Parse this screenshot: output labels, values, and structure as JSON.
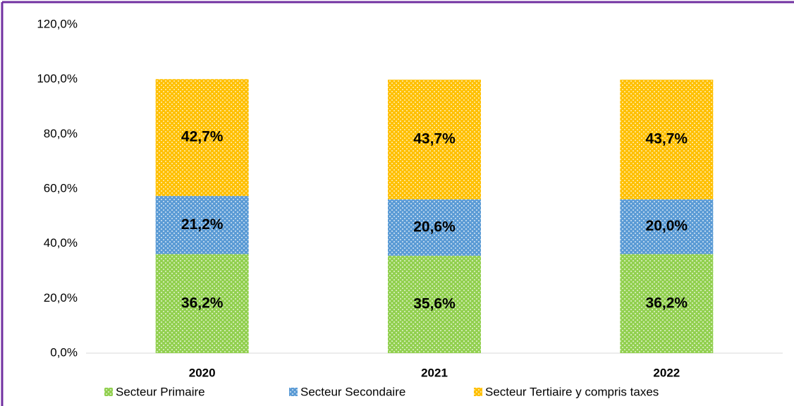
{
  "chart_data": {
    "type": "stacked_bar",
    "categories": [
      "2020",
      "2021",
      "2022"
    ],
    "series": [
      {
        "name": "Secteur Primaire",
        "color": "#92d050",
        "values": [
          36.2,
          35.6,
          36.2
        ],
        "value_labels": [
          "36,2%",
          "35,6%",
          "36,2%"
        ]
      },
      {
        "name": "Secteur Secondaire",
        "color": "#5b9bd5",
        "values": [
          21.2,
          20.6,
          20.0
        ],
        "value_labels": [
          "21,2%",
          "20,6%",
          "20,0%"
        ]
      },
      {
        "name": "Secteur Tertiaire y compris taxes",
        "color": "#ffc000",
        "values": [
          42.7,
          43.7,
          43.7
        ],
        "value_labels": [
          "42,7%",
          "43,7%",
          "43,7%"
        ]
      }
    ],
    "ylim": [
      0,
      120
    ],
    "yticks": [
      {
        "value": 0,
        "label": "0,0%"
      },
      {
        "value": 20,
        "label": "20,0%"
      },
      {
        "value": 40,
        "label": "40,0%"
      },
      {
        "value": 60,
        "label": "60,0%"
      },
      {
        "value": 80,
        "label": "80,0%"
      },
      {
        "value": 100,
        "label": "100,0%"
      },
      {
        "value": 120,
        "label": "120,0%"
      }
    ],
    "grid": false,
    "legend": "bottom"
  }
}
